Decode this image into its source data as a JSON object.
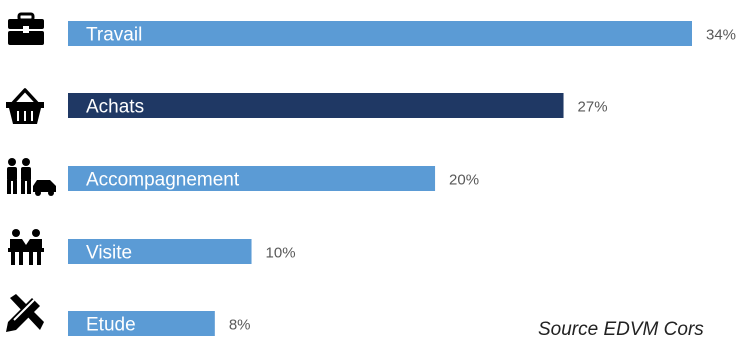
{
  "chart_data": {
    "type": "bar",
    "orientation": "horizontal",
    "categories": [
      "Travail",
      "Achats",
      "Accompagnement",
      "Visite",
      "Etude"
    ],
    "values": [
      34,
      27,
      20,
      10,
      8
    ],
    "value_labels": [
      "34%",
      "27%",
      "20%",
      "10%",
      "8%"
    ],
    "icons": [
      "briefcase-icon",
      "shopping-basket-icon",
      "accompanying-people-icon",
      "visit-icon",
      "study-tools-icon"
    ],
    "bar_colors": [
      "#5b9bd5",
      "#1f3864",
      "#5b9bd5",
      "#5b9bd5",
      "#5b9bd5"
    ],
    "grid": false,
    "legend": "none",
    "title": "",
    "xlabel": "",
    "ylabel": "",
    "xlim": [
      0,
      34
    ]
  },
  "source": "Source EDVM Cors"
}
